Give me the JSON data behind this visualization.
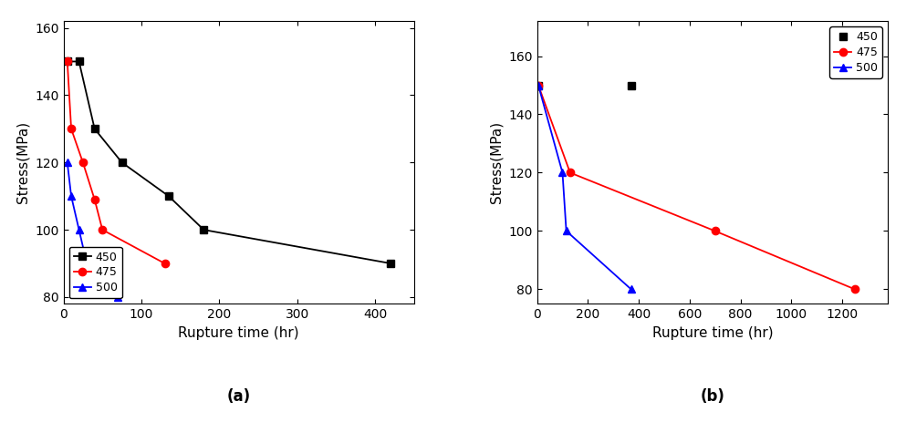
{
  "panel_a": {
    "series": [
      {
        "label": "450",
        "color": "black",
        "marker": "s",
        "x": [
          5,
          20,
          40,
          75,
          135,
          180,
          420
        ],
        "y": [
          150,
          150,
          130,
          120,
          110,
          100,
          90
        ],
        "linestyle": "-"
      },
      {
        "label": "475",
        "color": "red",
        "marker": "o",
        "x": [
          5,
          10,
          25,
          40,
          50,
          130
        ],
        "y": [
          150,
          130,
          120,
          109,
          100,
          90
        ],
        "linestyle": "-"
      },
      {
        "label": "500",
        "color": "blue",
        "marker": "^",
        "x": [
          5,
          10,
          20,
          30,
          70
        ],
        "y": [
          120,
          110,
          100,
          90,
          80
        ],
        "linestyle": "-"
      }
    ],
    "xlabel": "Rupture time (hr)",
    "ylabel": "Stress(MPa)",
    "xlim": [
      0,
      450
    ],
    "ylim": [
      78,
      162
    ],
    "xticks": [
      0,
      100,
      200,
      300,
      400
    ],
    "yticks": [
      80,
      100,
      120,
      140,
      160
    ],
    "legend_loc": "lower left",
    "label": "(a)"
  },
  "panel_b": {
    "series": [
      {
        "label": "450",
        "color": "black",
        "marker": "s",
        "x": [
          5,
          370
        ],
        "y": [
          150,
          150
        ],
        "linestyle": "none"
      },
      {
        "label": "475",
        "color": "red",
        "marker": "o",
        "x": [
          5,
          130,
          700,
          1250
        ],
        "y": [
          150,
          120,
          100,
          80
        ],
        "linestyle": "-"
      },
      {
        "label": "500",
        "color": "blue",
        "marker": "^",
        "x": [
          5,
          100,
          115,
          370
        ],
        "y": [
          150,
          120,
          100,
          80
        ],
        "linestyle": "-"
      }
    ],
    "xlabel": "Rupture time (hr)",
    "ylabel": "Stress(MPa)",
    "xlim": [
      0,
      1380
    ],
    "ylim": [
      75,
      172
    ],
    "xticks": [
      0,
      200,
      400,
      600,
      800,
      1000,
      1200
    ],
    "yticks": [
      80,
      100,
      120,
      140,
      160
    ],
    "legend_loc": "upper right",
    "label": "(b)"
  },
  "markersize": 6,
  "linewidth": 1.3,
  "fontsize_label": 11,
  "fontsize_tick": 10,
  "fontsize_caption": 12,
  "fontsize_legend": 9
}
